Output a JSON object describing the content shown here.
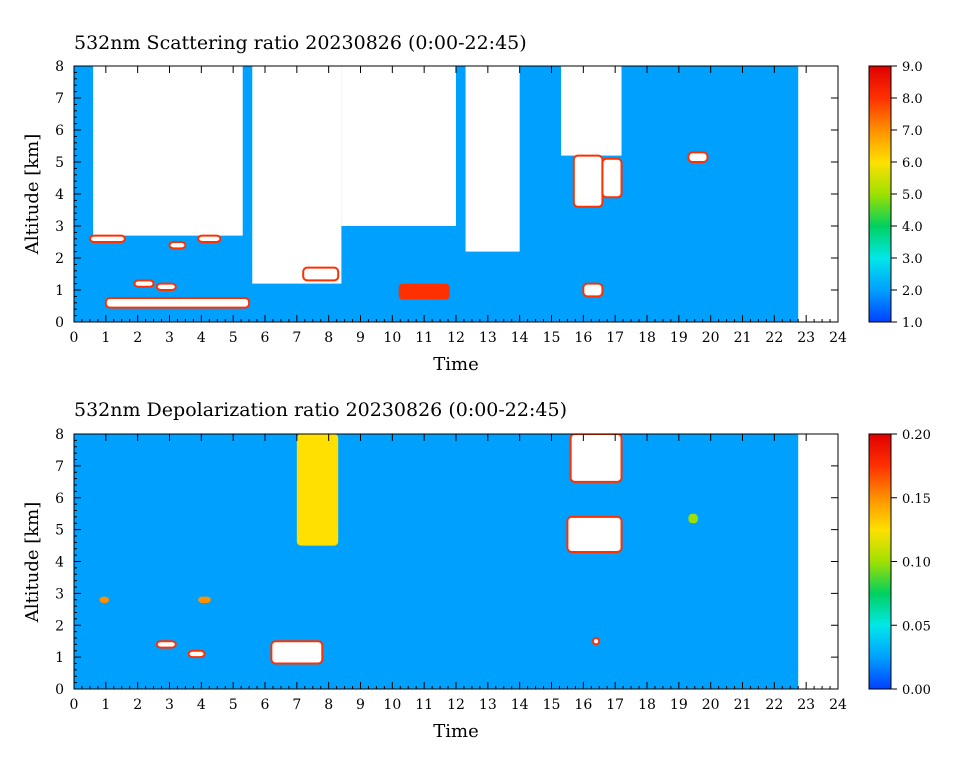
{
  "chart_data": [
    {
      "type": "heatmap",
      "title": "532nm Scattering ratio  20230826 (0:00-22:45)",
      "xlabel": "Time",
      "ylabel": "Altitude [km]",
      "xlim": [
        0,
        24
      ],
      "ylim": [
        0,
        8
      ],
      "data_end_time": 22.75,
      "x_ticks": [
        "0",
        "1",
        "2",
        "3",
        "4",
        "5",
        "6",
        "7",
        "8",
        "9",
        "10",
        "11",
        "12",
        "13",
        "14",
        "15",
        "16",
        "17",
        "18",
        "19",
        "20",
        "21",
        "22",
        "23",
        "24"
      ],
      "y_ticks": [
        "0",
        "1",
        "2",
        "3",
        "4",
        "5",
        "6",
        "7",
        "8"
      ],
      "colorbar": {
        "range": [
          1.0,
          9.0
        ],
        "ticks": [
          "1.0",
          "2.0",
          "3.0",
          "4.0",
          "5.0",
          "6.0",
          "7.0",
          "8.0",
          "9.0"
        ],
        "colors": [
          "#0040ff",
          "#00a0ff",
          "#00e8e8",
          "#00d060",
          "#a0e000",
          "#ffe000",
          "#ff9000",
          "#ff3000",
          "#e00000"
        ]
      },
      "background_value": 1.6,
      "features": [
        {
          "kind": "cloud",
          "t_start": 0.0,
          "t_end": 0.6,
          "z_low": 0.5,
          "z_high": 8.0,
          "value": 2.3
        },
        {
          "kind": "saturated",
          "t_start": 0.6,
          "t_end": 5.3,
          "z_low": 2.7,
          "z_high": 8.0
        },
        {
          "kind": "saturated",
          "t_start": 5.6,
          "t_end": 8.4,
          "z_low": 1.2,
          "z_high": 8.0
        },
        {
          "kind": "saturated",
          "t_start": 8.4,
          "t_end": 12.0,
          "z_low": 3.0,
          "z_high": 8.0
        },
        {
          "kind": "saturated",
          "t_start": 12.3,
          "t_end": 14.0,
          "z_low": 2.2,
          "z_high": 8.0
        },
        {
          "kind": "saturated",
          "t_start": 15.3,
          "t_end": 17.2,
          "z_low": 5.2,
          "z_high": 8.0
        },
        {
          "kind": "cloud",
          "t_start": 1.9,
          "t_end": 2.5,
          "z_low": 1.1,
          "z_high": 1.3,
          "value": 9.0
        },
        {
          "kind": "cloud",
          "t_start": 2.6,
          "t_end": 3.2,
          "z_low": 1.0,
          "z_high": 1.2,
          "value": 9.0
        },
        {
          "kind": "cloud",
          "t_start": 1.0,
          "t_end": 5.5,
          "z_low": 0.45,
          "z_high": 0.75,
          "value": 9.0
        },
        {
          "kind": "cloud",
          "t_start": 7.2,
          "t_end": 8.3,
          "z_low": 1.3,
          "z_high": 1.7,
          "value": 9.0
        },
        {
          "kind": "cloud",
          "t_start": 10.2,
          "t_end": 11.8,
          "z_low": 0.7,
          "z_high": 1.2,
          "value": 7.5
        },
        {
          "kind": "cloud",
          "t_start": 15.7,
          "t_end": 16.6,
          "z_low": 3.6,
          "z_high": 5.2,
          "value": 9.0
        },
        {
          "kind": "cloud",
          "t_start": 16.6,
          "t_end": 17.2,
          "z_low": 3.9,
          "z_high": 5.1,
          "value": 9.0
        },
        {
          "kind": "cloud",
          "t_start": 16.0,
          "t_end": 16.6,
          "z_low": 0.8,
          "z_high": 1.2,
          "value": 9.0
        },
        {
          "kind": "cloud",
          "t_start": 19.3,
          "t_end": 19.9,
          "z_low": 5.0,
          "z_high": 5.3,
          "value": 9.0
        },
        {
          "kind": "cloud",
          "t_start": 0.5,
          "t_end": 1.6,
          "z_low": 2.5,
          "z_high": 2.7,
          "value": 9.0
        },
        {
          "kind": "cloud",
          "t_start": 3.0,
          "t_end": 3.5,
          "z_low": 2.3,
          "z_high": 2.5,
          "value": 9.0
        },
        {
          "kind": "cloud",
          "t_start": 3.9,
          "t_end": 4.6,
          "z_low": 2.5,
          "z_high": 2.7,
          "value": 9.0
        }
      ]
    },
    {
      "type": "heatmap",
      "title": "532nm Depolarization ratio  20230826 (0:00-22:45)",
      "xlabel": "Time",
      "ylabel": "Altitude [km]",
      "xlim": [
        0,
        24
      ],
      "ylim": [
        0,
        8
      ],
      "data_end_time": 22.75,
      "x_ticks": [
        "0",
        "1",
        "2",
        "3",
        "4",
        "5",
        "6",
        "7",
        "8",
        "9",
        "10",
        "11",
        "12",
        "13",
        "14",
        "15",
        "16",
        "17",
        "18",
        "19",
        "20",
        "21",
        "22",
        "23",
        "24"
      ],
      "y_ticks": [
        "0",
        "1",
        "2",
        "3",
        "4",
        "5",
        "6",
        "7",
        "8"
      ],
      "colorbar": {
        "range": [
          0.0,
          0.2
        ],
        "ticks": [
          "0.00",
          "0.05",
          "0.10",
          "0.15",
          "0.20"
        ],
        "colors": [
          "#0040ff",
          "#00a0ff",
          "#00e8e8",
          "#00d060",
          "#a0e000",
          "#ffe000",
          "#ff9000",
          "#ff3000",
          "#e00000"
        ]
      },
      "background_value": 0.03,
      "features": [
        {
          "kind": "cloud",
          "t_start": 15.6,
          "t_end": 17.2,
          "z_low": 6.5,
          "z_high": 8.0,
          "value": 0.2
        },
        {
          "kind": "cloud",
          "t_start": 15.5,
          "t_end": 17.2,
          "z_low": 4.3,
          "z_high": 5.4,
          "value": 0.2
        },
        {
          "kind": "cloud",
          "t_start": 7.0,
          "t_end": 8.3,
          "z_low": 4.5,
          "z_high": 8.0,
          "value": 0.12
        },
        {
          "kind": "cloud",
          "t_start": 6.2,
          "t_end": 7.8,
          "z_low": 0.8,
          "z_high": 1.5,
          "value": 0.2
        },
        {
          "kind": "cloud",
          "t_start": 0.8,
          "t_end": 1.1,
          "z_low": 2.7,
          "z_high": 2.9,
          "value": 0.15
        },
        {
          "kind": "cloud",
          "t_start": 3.9,
          "t_end": 4.3,
          "z_low": 2.7,
          "z_high": 2.9,
          "value": 0.16
        },
        {
          "kind": "cloud",
          "t_start": 2.6,
          "t_end": 3.2,
          "z_low": 1.3,
          "z_high": 1.5,
          "value": 0.2
        },
        {
          "kind": "cloud",
          "t_start": 3.6,
          "t_end": 4.1,
          "z_low": 1.0,
          "z_high": 1.2,
          "value": 0.2
        },
        {
          "kind": "cloud",
          "t_start": 19.3,
          "t_end": 19.6,
          "z_low": 5.2,
          "z_high": 5.5,
          "value": 0.1
        },
        {
          "kind": "cloud",
          "t_start": 16.3,
          "t_end": 16.5,
          "z_low": 1.4,
          "z_high": 1.6,
          "value": 0.2
        }
      ]
    }
  ]
}
